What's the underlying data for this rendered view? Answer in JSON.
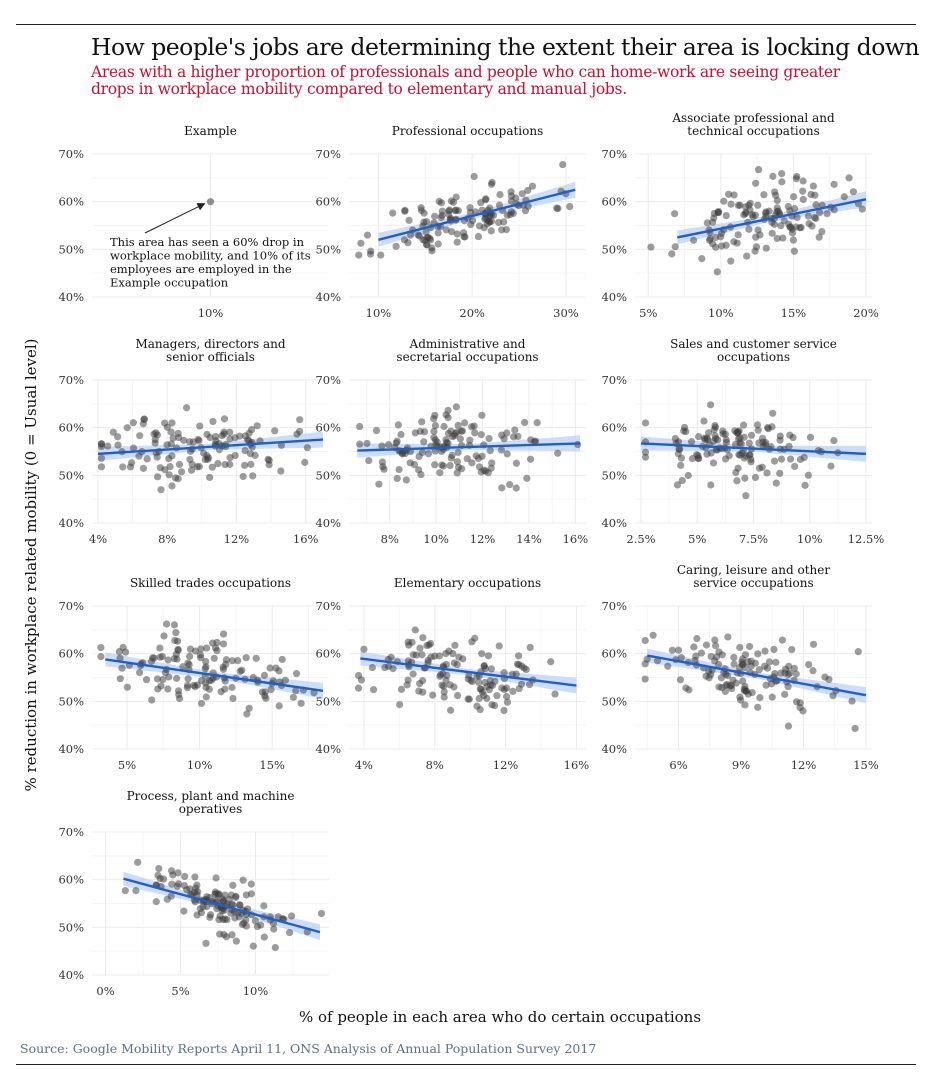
{
  "title": "How people's jobs are determining the extent their area is locking down",
  "subtitle": "Areas with a higher proportion of professionals and people who can home-work are seeing greater drops in workplace mobility compared to elementary and manual jobs.",
  "ylabel": "% reduction in workplace related mobility (0 = Usual level)",
  "xlabel": "% of people in each area who do certain occupations",
  "source": "Source: Google Mobility Reports April 11, ONS Analysis of Annual Population Survey 2017",
  "annotation": "This area has seen a 60% drop in workplace mobility, and 10% of its employees are employed in the Example occupation",
  "colors": {
    "accent": "#c8102e",
    "trend": "#1f5fcc",
    "band": "#b9cff3",
    "points": "#3a3a3a",
    "source": "#5a7088",
    "grid": "#ebebeb"
  },
  "chart_data": [
    {
      "type": "scatter",
      "title": "Example",
      "xlim": [
        0.09,
        0.11
      ],
      "ylim": [
        0.4,
        0.7
      ],
      "xticks": [
        0.1
      ],
      "xtick_labels": [
        "10%"
      ],
      "yticks": [
        0.4,
        0.5,
        0.6,
        0.7
      ],
      "ytick_labels": [
        "40%",
        "50%",
        "60%",
        "70%"
      ],
      "points": [
        [
          0.1,
          0.6
        ]
      ],
      "trend": null,
      "grid": true
    },
    {
      "type": "scatter",
      "title": "Professional occupations",
      "xlim": [
        0.075,
        0.315
      ],
      "ylim": [
        0.4,
        0.7
      ],
      "xticks": [
        0.1,
        0.2,
        0.3
      ],
      "xtick_labels": [
        "10%",
        "20%",
        "30%"
      ],
      "yticks": [
        0.4,
        0.5,
        0.6,
        0.7
      ],
      "ytick_labels": [
        "40%",
        "50%",
        "60%",
        "70%"
      ],
      "trend": [
        [
          0.1,
          0.52
        ],
        [
          0.31,
          0.625
        ]
      ],
      "seed": 11,
      "n": 130,
      "spread": 0.03,
      "grid": true
    },
    {
      "type": "scatter",
      "title": "Associate professional and technical occupations",
      "xlim": [
        0.045,
        0.2
      ],
      "ylim": [
        0.4,
        0.7
      ],
      "xticks": [
        0.05,
        0.1,
        0.15,
        0.2
      ],
      "xtick_labels": [
        "5%",
        "10%",
        "15%",
        "20%"
      ],
      "yticks": [
        0.4,
        0.5,
        0.6,
        0.7
      ],
      "ytick_labels": [
        "40%",
        "50%",
        "60%",
        "70%"
      ],
      "trend": [
        [
          0.07,
          0.525
        ],
        [
          0.2,
          0.605
        ]
      ],
      "seed": 23,
      "n": 130,
      "spread": 0.035,
      "grid": true
    },
    {
      "type": "scatter",
      "title": "Managers, directors and senior officials",
      "xlim": [
        0.04,
        0.17
      ],
      "ylim": [
        0.4,
        0.7
      ],
      "xticks": [
        0.04,
        0.08,
        0.12,
        0.16
      ],
      "xtick_labels": [
        "4%",
        "8%",
        "12%",
        "16%"
      ],
      "yticks": [
        0.4,
        0.5,
        0.6,
        0.7
      ],
      "ytick_labels": [
        "40%",
        "50%",
        "60%",
        "70%"
      ],
      "trend": [
        [
          0.04,
          0.545
        ],
        [
          0.17,
          0.575
        ]
      ],
      "seed": 37,
      "n": 130,
      "spread": 0.035,
      "grid": true
    },
    {
      "type": "scatter",
      "title": "Administrative and secretarial occupations",
      "xlim": [
        0.065,
        0.162
      ],
      "ylim": [
        0.4,
        0.7
      ],
      "xticks": [
        0.08,
        0.1,
        0.12,
        0.14,
        0.16
      ],
      "xtick_labels": [
        "8%",
        "10%",
        "12%",
        "14%",
        "16%"
      ],
      "yticks": [
        0.4,
        0.5,
        0.6,
        0.7
      ],
      "ytick_labels": [
        "40%",
        "50%",
        "60%",
        "70%"
      ],
      "trend": [
        [
          0.066,
          0.552
        ],
        [
          0.162,
          0.567
        ]
      ],
      "seed": 41,
      "n": 130,
      "spread": 0.035,
      "grid": true
    },
    {
      "type": "scatter",
      "title": "Sales and customer service occupations",
      "xlim": [
        0.025,
        0.125
      ],
      "ylim": [
        0.4,
        0.7
      ],
      "xticks": [
        0.025,
        0.05,
        0.075,
        0.1,
        0.125
      ],
      "xtick_labels": [
        "2.5%",
        "5%",
        "7.5%",
        "10%",
        "12.5%"
      ],
      "yticks": [
        0.4,
        0.5,
        0.6,
        0.7
      ],
      "ytick_labels": [
        "40%",
        "50%",
        "60%",
        "70%"
      ],
      "trend": [
        [
          0.025,
          0.567
        ],
        [
          0.125,
          0.545
        ]
      ],
      "seed": 53,
      "n": 130,
      "spread": 0.035,
      "grid": true
    },
    {
      "type": "scatter",
      "title": "Skilled trades occupations",
      "xlim": [
        0.03,
        0.185
      ],
      "ylim": [
        0.4,
        0.7
      ],
      "xticks": [
        0.05,
        0.1,
        0.15
      ],
      "xtick_labels": [
        "5%",
        "10%",
        "15%"
      ],
      "yticks": [
        0.4,
        0.5,
        0.6,
        0.7
      ],
      "ytick_labels": [
        "40%",
        "50%",
        "60%",
        "70%"
      ],
      "trend": [
        [
          0.035,
          0.588
        ],
        [
          0.185,
          0.522
        ]
      ],
      "seed": 67,
      "n": 130,
      "spread": 0.035,
      "grid": true
    },
    {
      "type": "scatter",
      "title": "Elementary occupations",
      "xlim": [
        0.035,
        0.162
      ],
      "ylim": [
        0.4,
        0.7
      ],
      "xticks": [
        0.04,
        0.08,
        0.12,
        0.16
      ],
      "xtick_labels": [
        "4%",
        "8%",
        "12%",
        "16%"
      ],
      "yticks": [
        0.4,
        0.5,
        0.6,
        0.7
      ],
      "ytick_labels": [
        "40%",
        "50%",
        "60%",
        "70%"
      ],
      "trend": [
        [
          0.038,
          0.59
        ],
        [
          0.16,
          0.533
        ]
      ],
      "seed": 79,
      "n": 130,
      "spread": 0.035,
      "grid": true
    },
    {
      "type": "scatter",
      "title": "Caring, leisure and other service occupations",
      "xlim": [
        0.042,
        0.15
      ],
      "ylim": [
        0.4,
        0.7
      ],
      "xticks": [
        0.06,
        0.09,
        0.12,
        0.15
      ],
      "xtick_labels": [
        "6%",
        "9%",
        "12%",
        "15%"
      ],
      "yticks": [
        0.4,
        0.5,
        0.6,
        0.7
      ],
      "ytick_labels": [
        "40%",
        "50%",
        "60%",
        "70%"
      ],
      "trend": [
        [
          0.045,
          0.596
        ],
        [
          0.15,
          0.513
        ]
      ],
      "seed": 83,
      "n": 130,
      "spread": 0.035,
      "grid": true
    },
    {
      "type": "scatter",
      "title": "Process, plant and machine operatives",
      "xlim": [
        -0.005,
        0.145
      ],
      "ylim": [
        0.4,
        0.7
      ],
      "xticks": [
        0.0,
        0.05,
        0.1
      ],
      "xtick_labels": [
        "0%",
        "5%",
        "10%"
      ],
      "yticks": [
        0.4,
        0.5,
        0.6,
        0.7
      ],
      "ytick_labels": [
        "40%",
        "50%",
        "60%",
        "70%"
      ],
      "trend": [
        [
          0.012,
          0.602
        ],
        [
          0.143,
          0.49
        ]
      ],
      "seed": 97,
      "n": 130,
      "spread": 0.03,
      "grid": true
    }
  ]
}
